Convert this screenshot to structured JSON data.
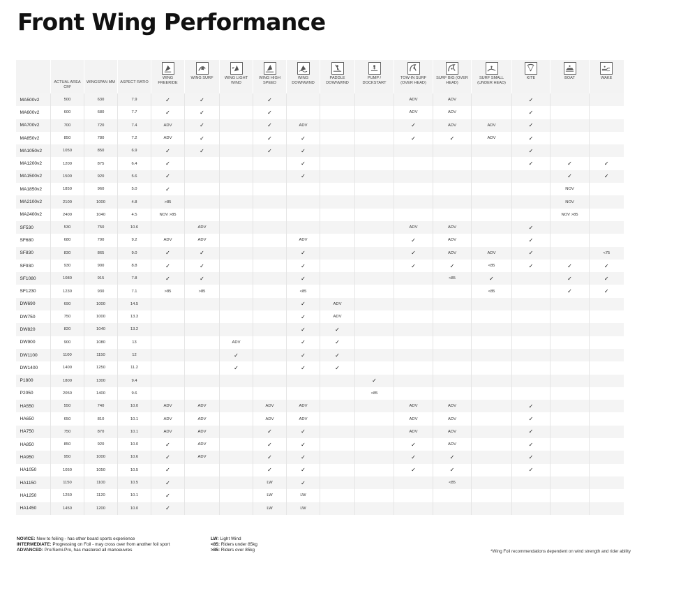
{
  "title": "Front Wing Performance",
  "columns": [
    {
      "label": "",
      "icon": ""
    },
    {
      "label": "ACTUAL AREA CM²",
      "icon": ""
    },
    {
      "label": "WINGSPAN MM",
      "icon": ""
    },
    {
      "label": "ASPECT RATIO",
      "icon": ""
    },
    {
      "label": "WING FREERIDE",
      "icon": "wing-freeride-icon"
    },
    {
      "label": "WING SURF",
      "icon": "wing-surf-icon"
    },
    {
      "label": "WING LIGHT WIND",
      "icon": "wing-light-wind-icon"
    },
    {
      "label": "WING HIGH SPEED",
      "icon": "wing-high-speed-icon"
    },
    {
      "label": "WING DOWNWIND",
      "icon": "wing-downwind-icon"
    },
    {
      "label": "PADDLE DOWNWIND",
      "icon": "paddle-downwind-icon"
    },
    {
      "label": "PUMP / DOCKSTART",
      "icon": "pump-dockstart-icon"
    },
    {
      "label": "TOW-IN SURF (OVER HEAD)",
      "icon": "tow-in-surf-icon"
    },
    {
      "label": "SURF BIG (OVER HEAD)",
      "icon": "surf-big-icon"
    },
    {
      "label": "SURF SMALL (UNDER HEAD)",
      "icon": "surf-small-icon"
    },
    {
      "label": "KITE",
      "icon": "kite-icon"
    },
    {
      "label": "BOAT",
      "icon": "boat-icon"
    },
    {
      "label": "WAKE",
      "icon": "wake-icon"
    }
  ],
  "rows": [
    [
      "MA500v2",
      "500",
      "630",
      "7.9",
      "✓",
      "✓",
      "",
      "✓",
      "",
      "",
      "",
      "ADV",
      "ADV",
      "",
      "✓",
      "",
      ""
    ],
    [
      "MA600v2",
      "600",
      "680",
      "7.7",
      "✓",
      "✓",
      "",
      "✓",
      "",
      "",
      "",
      "ADV",
      "ADV",
      "",
      "✓",
      "",
      ""
    ],
    [
      "MA700v2",
      "700",
      "720",
      "7.4",
      "ADV",
      "✓",
      "",
      "✓",
      "ADV",
      "",
      "",
      "✓",
      "ADV",
      "ADV",
      "✓",
      "",
      ""
    ],
    [
      "MA850v2",
      "850",
      "780",
      "7.2",
      "ADV",
      "✓",
      "",
      "✓",
      "✓",
      "",
      "",
      "✓",
      "✓",
      "ADV",
      "✓",
      "",
      ""
    ],
    [
      "MA1050v2",
      "1050",
      "850",
      "6.9",
      "✓",
      "✓",
      "",
      "✓",
      "✓",
      "",
      "",
      "",
      "",
      "",
      "✓",
      "",
      ""
    ],
    [
      "MA1200v2",
      "1200",
      "875",
      "6.4",
      "✓",
      "",
      "",
      "",
      "✓",
      "",
      "",
      "",
      "",
      "",
      "✓",
      "✓",
      "✓"
    ],
    [
      "MA1500v2",
      "1500",
      "920",
      "5.6",
      "✓",
      "",
      "",
      "",
      "✓",
      "",
      "",
      "",
      "",
      "",
      "",
      "✓",
      "✓"
    ],
    [
      "MA1850v2",
      "1850",
      "960",
      "5.0",
      "✓",
      "",
      "",
      "",
      "",
      "",
      "",
      "",
      "",
      "",
      "",
      "NOV",
      ""
    ],
    [
      "MA2100v2",
      "2100",
      "1000",
      "4.8",
      ">85",
      "",
      "",
      "",
      "",
      "",
      "",
      "",
      "",
      "",
      "",
      "NOV",
      ""
    ],
    [
      "MA2400v2",
      "2400",
      "1040",
      "4.5",
      "NOV >85",
      "",
      "",
      "",
      "",
      "",
      "",
      "",
      "",
      "",
      "",
      "NOV >85",
      ""
    ],
    [
      "SF530",
      "530",
      "750",
      "10.6",
      "",
      "ADV",
      "",
      "",
      "",
      "",
      "",
      "ADV",
      "ADV",
      "",
      "✓",
      "",
      ""
    ],
    [
      "SF680",
      "680",
      "790",
      "9.2",
      "ADV",
      "ADV",
      "",
      "",
      "ADV",
      "",
      "",
      "✓",
      "ADV",
      "",
      "✓",
      "",
      ""
    ],
    [
      "SF830",
      "830",
      "865",
      "9.0",
      "✓",
      "✓",
      "",
      "",
      "✓",
      "",
      "",
      "✓",
      "ADV",
      "ADV",
      "✓",
      "",
      "<75"
    ],
    [
      "SF930",
      "930",
      "900",
      "8.8",
      "✓",
      "✓",
      "",
      "",
      "✓",
      "",
      "",
      "✓",
      "✓",
      "<85",
      "✓",
      "✓",
      "✓"
    ],
    [
      "SF1080",
      "1080",
      "915",
      "7.8",
      "✓",
      "✓",
      "",
      "",
      "✓",
      "",
      "",
      "",
      "<85",
      "✓",
      "",
      "✓",
      "✓"
    ],
    [
      "SF1230",
      "1230",
      "930",
      "7.1",
      ">85",
      ">85",
      "",
      "",
      "<85",
      "",
      "",
      "",
      "",
      "<85",
      "",
      "✓",
      "✓"
    ],
    [
      "DW690",
      "690",
      "1000",
      "14.5",
      "",
      "",
      "",
      "",
      "✓",
      "ADV",
      "",
      "",
      "",
      "",
      "",
      "",
      ""
    ],
    [
      "DW750",
      "750",
      "1000",
      "13.3",
      "",
      "",
      "",
      "",
      "✓",
      "ADV",
      "",
      "",
      "",
      "",
      "",
      "",
      ""
    ],
    [
      "DW820",
      "820",
      "1040",
      "13.2",
      "",
      "",
      "",
      "",
      "✓",
      "✓",
      "",
      "",
      "",
      "",
      "",
      "",
      ""
    ],
    [
      "DW900",
      "900",
      "1080",
      "13",
      "",
      "",
      "ADV",
      "",
      "✓",
      "✓",
      "",
      "",
      "",
      "",
      "",
      "",
      ""
    ],
    [
      "DW1100",
      "1100",
      "1150",
      "12",
      "",
      "",
      "✓",
      "",
      "✓",
      "✓",
      "",
      "",
      "",
      "",
      "",
      "",
      ""
    ],
    [
      "DW1400",
      "1400",
      "1250",
      "11.2",
      "",
      "",
      "✓",
      "",
      "✓",
      "✓",
      "",
      "",
      "",
      "",
      "",
      "",
      ""
    ],
    [
      "P1800",
      "1800",
      "1300",
      "9.4",
      "",
      "",
      "",
      "",
      "",
      "",
      "✓",
      "",
      "",
      "",
      "",
      "",
      ""
    ],
    [
      "P2050",
      "2050",
      "1400",
      "9.6",
      "",
      "",
      "",
      "",
      "",
      "",
      "<85",
      "",
      "",
      "",
      "",
      "",
      ""
    ],
    [
      "HA550",
      "550",
      "740",
      "10.0",
      "ADV",
      "ADV",
      "",
      "ADV",
      "ADV",
      "",
      "",
      "ADV",
      "ADV",
      "",
      "✓",
      "",
      ""
    ],
    [
      "HA650",
      "650",
      "810",
      "10.1",
      "ADV",
      "ADV",
      "",
      "ADV",
      "ADV",
      "",
      "",
      "ADV",
      "ADV",
      "",
      "✓",
      "",
      ""
    ],
    [
      "HA750",
      "750",
      "870",
      "10.1",
      "ADV",
      "ADV",
      "",
      "✓",
      "✓",
      "",
      "",
      "ADV",
      "ADV",
      "",
      "✓",
      "",
      ""
    ],
    [
      "HA850",
      "850",
      "920",
      "10.0",
      "✓",
      "ADV",
      "",
      "✓",
      "✓",
      "",
      "",
      "✓",
      "ADV",
      "",
      "✓",
      "",
      ""
    ],
    [
      "HA950",
      "950",
      "1000",
      "10.6",
      "✓",
      "ADV",
      "",
      "✓",
      "✓",
      "",
      "",
      "✓",
      "✓",
      "",
      "✓",
      "",
      ""
    ],
    [
      "HA1050",
      "1050",
      "1050",
      "10.5",
      "✓",
      "",
      "",
      "✓",
      "✓",
      "",
      "",
      "✓",
      "✓",
      "",
      "✓",
      "",
      ""
    ],
    [
      "HA1150",
      "1150",
      "1100",
      "10.5",
      "✓",
      "",
      "",
      "LW",
      "✓",
      "",
      "",
      "",
      "<85",
      "",
      "",
      "",
      ""
    ],
    [
      "HA1250",
      "1250",
      "1120",
      "10.1",
      "✓",
      "",
      "",
      "LW",
      "LW",
      "",
      "",
      "",
      "",
      "",
      "",
      "",
      ""
    ],
    [
      "HA1450",
      "1450",
      "1200",
      "10.0",
      "✓",
      "",
      "",
      "LW",
      "LW",
      "",
      "",
      "",
      "",
      "",
      "",
      "",
      ""
    ]
  ],
  "legend": {
    "novice_term": "NOVICE:",
    "novice_text": " New to foiling - has other board sports experience",
    "intermediate_term": "INTERMEDIATE:",
    "intermediate_text": " Progressing on Foil - may cross over from another foil sport",
    "advanced_term": "ADVANCED:",
    "advanced_text": " Pro/Semi-Pro, has mastered all manoeuvres",
    "lw_term": "LW:",
    "lw_text": " Light Wind",
    "under_term": "<85:",
    "under_text": " Riders under 85kg",
    "over_term": ">85:",
    "over_text": " Riders over 85kg"
  },
  "footnote": "*Wing Foil recommendations dependent on wind strength and rider ability",
  "colors": {
    "header_bg": "#f3f3f3",
    "stripe": "#f4f4f4",
    "text": "#1c1c1c"
  }
}
